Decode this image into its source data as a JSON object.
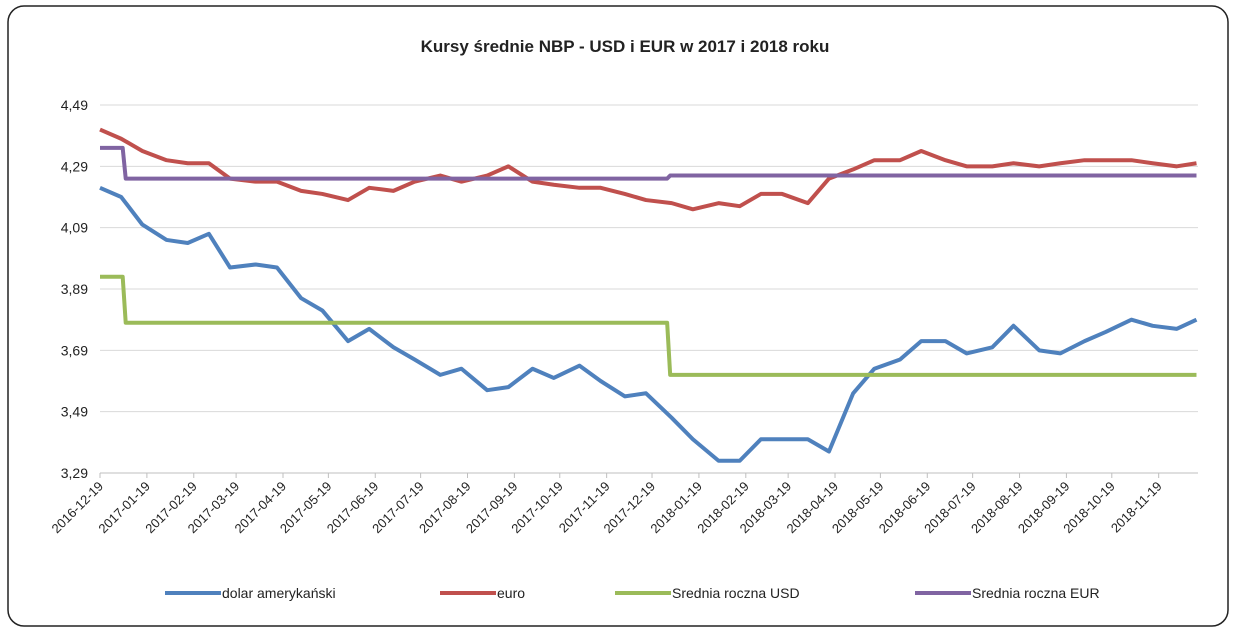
{
  "chart_data": {
    "type": "line",
    "title": "Kursy średnie NBP - USD i EUR w 2017 i 2018 roku",
    "x": [
      "2016-12-19",
      "2017-01-02",
      "2017-01-16",
      "2017-02-01",
      "2017-02-15",
      "2017-03-01",
      "2017-03-15",
      "2017-04-01",
      "2017-04-15",
      "2017-05-01",
      "2017-05-15",
      "2017-06-01",
      "2017-06-15",
      "2017-07-01",
      "2017-07-15",
      "2017-08-01",
      "2017-08-15",
      "2017-09-01",
      "2017-09-15",
      "2017-10-01",
      "2017-10-15",
      "2017-11-01",
      "2017-11-15",
      "2017-12-01",
      "2017-12-15",
      "2018-01-01",
      "2018-01-15",
      "2018-02-01",
      "2018-02-15",
      "2018-03-01",
      "2018-03-15",
      "2018-04-01",
      "2018-04-15",
      "2018-05-01",
      "2018-05-15",
      "2018-06-01",
      "2018-06-15",
      "2018-07-01",
      "2018-07-15",
      "2018-08-01",
      "2018-08-15",
      "2018-09-01",
      "2018-09-15",
      "2018-10-01",
      "2018-10-15",
      "2018-11-01",
      "2018-11-15",
      "2018-12-01",
      "2018-12-14"
    ],
    "series": [
      {
        "name": "dolar amerykański",
        "color": "#4f81bd",
        "values": [
          4.22,
          4.19,
          4.1,
          4.05,
          4.04,
          4.07,
          3.96,
          3.97,
          3.96,
          3.86,
          3.82,
          3.72,
          3.76,
          3.7,
          3.66,
          3.61,
          3.63,
          3.56,
          3.57,
          3.63,
          3.6,
          3.64,
          3.59,
          3.54,
          3.55,
          3.47,
          3.4,
          3.33,
          3.33,
          3.4,
          3.4,
          3.4,
          3.36,
          3.55,
          3.63,
          3.66,
          3.72,
          3.72,
          3.68,
          3.7,
          3.77,
          3.69,
          3.68,
          3.72,
          3.75,
          3.79,
          3.77,
          3.76,
          3.79
        ]
      },
      {
        "name": "euro",
        "color": "#c0504d",
        "values": [
          4.41,
          4.38,
          4.34,
          4.31,
          4.3,
          4.3,
          4.25,
          4.24,
          4.24,
          4.21,
          4.2,
          4.18,
          4.22,
          4.21,
          4.24,
          4.26,
          4.24,
          4.26,
          4.29,
          4.24,
          4.23,
          4.22,
          4.22,
          4.2,
          4.18,
          4.17,
          4.15,
          4.17,
          4.16,
          4.2,
          4.2,
          4.17,
          4.25,
          4.28,
          4.31,
          4.31,
          4.34,
          4.31,
          4.29,
          4.29,
          4.3,
          4.29,
          4.3,
          4.31,
          4.31,
          4.31,
          4.3,
          4.29,
          4.3
        ]
      },
      {
        "name": "Srednia roczna USD",
        "color": "#9bbb59",
        "x": [
          "2016-12-19",
          "2017-01-03",
          "2017-01-05",
          "2017-12-29",
          "2017-12-31",
          "2018-12-14"
        ],
        "values": [
          3.93,
          3.93,
          3.78,
          3.78,
          3.61,
          3.61
        ]
      },
      {
        "name": "Srednia roczna EUR",
        "color": "#8064a2",
        "x": [
          "2016-12-19",
          "2017-01-03",
          "2017-01-05",
          "2017-12-29",
          "2017-12-31",
          "2018-12-14"
        ],
        "values": [
          4.35,
          4.35,
          4.25,
          4.25,
          4.26,
          4.26
        ]
      }
    ],
    "xlim": [
      "2016-12-19",
      "2018-12-15"
    ],
    "xticks": [
      "2016-12-19",
      "2017-01-19",
      "2017-02-19",
      "2017-03-19",
      "2017-04-19",
      "2017-05-19",
      "2017-06-19",
      "2017-07-19",
      "2017-08-19",
      "2017-09-19",
      "2017-10-19",
      "2017-11-19",
      "2017-12-19",
      "2018-01-19",
      "2018-02-19",
      "2018-03-19",
      "2018-04-19",
      "2018-05-19",
      "2018-06-19",
      "2018-07-19",
      "2018-08-19",
      "2018-09-19",
      "2018-10-19",
      "2018-11-19"
    ],
    "ylim": [
      3.29,
      4.49
    ],
    "yticks": [
      {
        "value": 3.29,
        "label": "3,29"
      },
      {
        "value": 3.49,
        "label": "3,49"
      },
      {
        "value": 3.69,
        "label": "3,69"
      },
      {
        "value": 3.89,
        "label": "3,89"
      },
      {
        "value": 4.09,
        "label": "4,09"
      },
      {
        "value": 4.29,
        "label": "4,29"
      },
      {
        "value": 4.49,
        "label": "4,49"
      }
    ],
    "grid": true,
    "legend": "bottom"
  }
}
